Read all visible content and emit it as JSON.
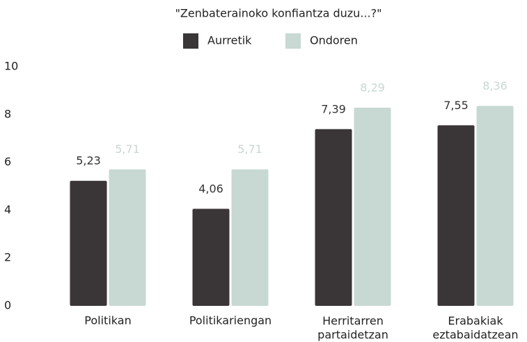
{
  "chart_data": {
    "type": "bar",
    "title": "\"Zenbaterainoko konfiantza duzu...?\"",
    "categories": [
      "Politikan",
      "Politikariengan",
      "Herritarren partaidetzan",
      "Erabakiak eztabaidatzean"
    ],
    "series": [
      {
        "name": "Aurretik",
        "color": "#3a3536",
        "values": [
          5.23,
          4.06,
          7.39,
          7.55
        ],
        "value_labels": [
          "5,23",
          "4,06",
          "7,39",
          "7,55"
        ]
      },
      {
        "name": "Ondoren",
        "color": "#c8d8d2",
        "values": [
          5.71,
          5.71,
          8.29,
          8.36
        ],
        "value_labels": [
          "5,71",
          "5,71",
          "8,29",
          "8,36"
        ]
      }
    ],
    "ylim": [
      0,
      10
    ],
    "yticks": [
      0,
      2,
      4,
      6,
      8,
      10
    ],
    "grid": false
  }
}
